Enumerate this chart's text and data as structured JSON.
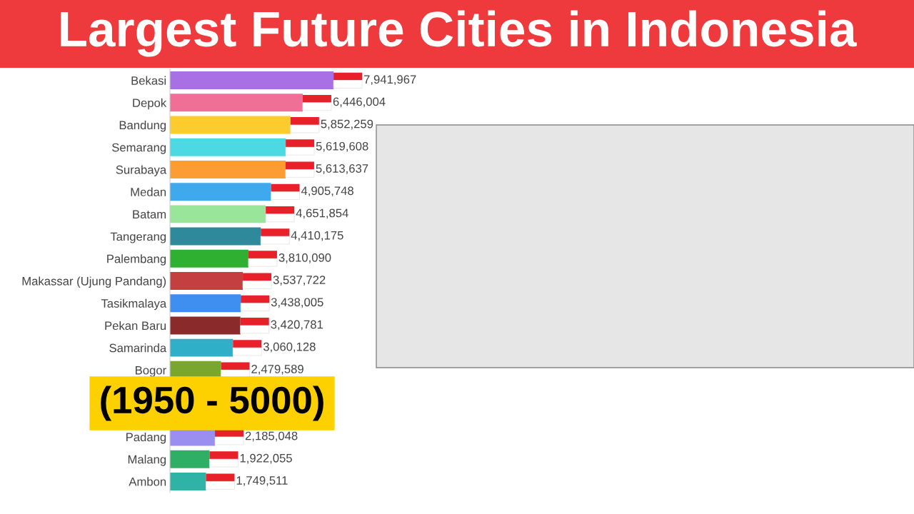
{
  "chart_data": {
    "type": "bar",
    "orientation": "horizontal",
    "title": "Largest Future Cities in Indonesia",
    "categories": [
      "Bekasi",
      "Depok",
      "Bandung",
      "Semarang",
      "Surabaya",
      "Medan",
      "Batam",
      "Tangerang",
      "Palembang",
      "Makassar (Ujung Pandang)",
      "Tasikmalaya",
      "Pekan Baru",
      "Samarinda",
      "Bogor",
      null,
      null,
      "Padang",
      "Malang",
      "Ambon"
    ],
    "values": [
      7941967,
      6446004,
      5852259,
      5619608,
      5613637,
      4905748,
      4651854,
      4410175,
      3810090,
      3537722,
      3438005,
      3420781,
      3060128,
      2479589,
      null,
      null,
      2185048,
      1922055,
      1749511
    ],
    "value_labels": [
      "7,941,967",
      "6,446,004",
      "5,852,259",
      "5,619,608",
      "5,613,637",
      "4,905,748",
      "4,651,854",
      "4,410,175",
      "3,810,090",
      "3,537,722",
      "3,438,005",
      "3,420,781",
      "3,060,128",
      "2,479,589",
      null,
      null,
      "2,185,048",
      "1,922,055",
      "1,749,511"
    ],
    "colors": [
      "#a970e6",
      "#f06f96",
      "#fccb2e",
      "#4dd9e3",
      "#fb9d33",
      "#3fa9ee",
      "#99e69a",
      "#2e8a9a",
      "#2fb030",
      "#c43f3f",
      "#3f8ff0",
      "#8a2a2a",
      "#2fb0c8",
      "#7aa62e",
      null,
      null,
      "#9a8ff0",
      "#2fae66",
      "#2fb3a6"
    ],
    "tick_labels": "y",
    "grid": false,
    "annotations": [
      "(1950 - 5000)"
    ]
  }
}
